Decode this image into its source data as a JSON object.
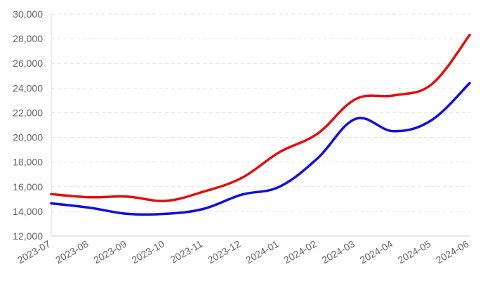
{
  "chart_data": {
    "type": "line",
    "categories": [
      "2023-07",
      "2023-08",
      "2023-09",
      "2023-10",
      "2023-11",
      "2023-12",
      "2024-01",
      "2024-02",
      "2024-03",
      "2024-04",
      "2024-05",
      "2024-06"
    ],
    "series": [
      {
        "color": "#e01010",
        "values": [
          15400,
          15150,
          15200,
          14850,
          15600,
          16700,
          18800,
          20300,
          23100,
          23400,
          24300,
          28300
        ]
      },
      {
        "color": "#1010d8",
        "values": [
          14650,
          14300,
          13800,
          13800,
          14200,
          15350,
          16000,
          18300,
          21500,
          20500,
          21400,
          24400
        ]
      }
    ],
    "ylim": [
      12000,
      30000
    ],
    "yticks": [
      {
        "value": 12000,
        "label": "12,000"
      },
      {
        "value": 14000,
        "label": "14,000"
      },
      {
        "value": 16000,
        "label": "16,000"
      },
      {
        "value": 18000,
        "label": "18,000"
      },
      {
        "value": 20000,
        "label": "20,000"
      },
      {
        "value": 22000,
        "label": "22,000"
      },
      {
        "value": 24000,
        "label": "24,000"
      },
      {
        "value": 26000,
        "label": "26,000"
      },
      {
        "value": 28000,
        "label": "28,000"
      },
      {
        "value": 30000,
        "label": "30,000"
      }
    ],
    "grid": true,
    "legend": "none"
  }
}
